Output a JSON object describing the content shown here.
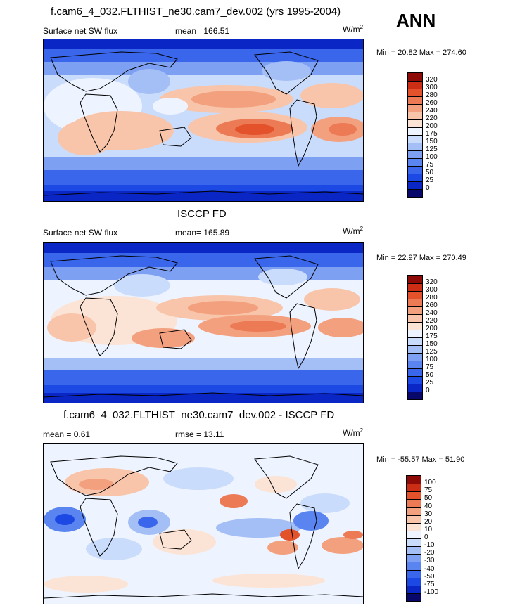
{
  "season": "ANN",
  "panels": [
    {
      "title": "f.cam6_4_032.FLTHIST_ne30.cam7_dev.002 (yrs 1995-2004)",
      "left_label": "Surface net SW flux",
      "center_label": "mean= 166.51",
      "units": "W/m",
      "units_sup": "2",
      "minmax": "Min =  20.82 Max = 274.60",
      "levels": [
        "0",
        "25",
        "50",
        "75",
        "100",
        "125",
        "150",
        "175",
        "200",
        "220",
        "240",
        "260",
        "280",
        "300",
        "320"
      ],
      "colors": [
        "#08086a",
        "#0a26c4",
        "#1c48e4",
        "#3a66ec",
        "#5a84f0",
        "#7ea0f2",
        "#a4bef6",
        "#cadcfb",
        "#eef4ff",
        "#fbe3d6",
        "#f8c5aa",
        "#f3a07f",
        "#ec7a55",
        "#e4522b",
        "#cb2e14",
        "#8e0a06"
      ]
    },
    {
      "title": "ISCCP FD",
      "left_label": "Surface net SW flux",
      "center_label": "mean= 165.89",
      "units": "W/m",
      "units_sup": "2",
      "minmax": "Min =  22.97 Max = 270.49",
      "levels": [
        "0",
        "25",
        "50",
        "75",
        "100",
        "125",
        "150",
        "175",
        "200",
        "220",
        "240",
        "260",
        "280",
        "300",
        "320"
      ],
      "colors": [
        "#08086a",
        "#0a26c4",
        "#1c48e4",
        "#3a66ec",
        "#5a84f0",
        "#7ea0f2",
        "#a4bef6",
        "#cadcfb",
        "#eef4ff",
        "#fbe3d6",
        "#f8c5aa",
        "#f3a07f",
        "#ec7a55",
        "#e4522b",
        "#cb2e14",
        "#8e0a06"
      ]
    },
    {
      "title": "f.cam6_4_032.FLTHIST_ne30.cam7_dev.002 - ISCCP FD",
      "left_label": "mean =   0.61",
      "center_label": "rmse =  13.11",
      "units": "W/m",
      "units_sup": "2",
      "minmax": "Min = -55.57 Max =  51.90",
      "levels": [
        "-100",
        "-75",
        "-50",
        "-40",
        "-30",
        "-20",
        "-10",
        "0",
        "10",
        "20",
        "30",
        "40",
        "50",
        "75",
        "100"
      ],
      "colors": [
        "#08086a",
        "#0a26c4",
        "#1c48e4",
        "#3a66ec",
        "#5a84f0",
        "#7ea0f2",
        "#a4bef6",
        "#cadcfb",
        "#eef4ff",
        "#fbe3d6",
        "#f8c5aa",
        "#f3a07f",
        "#ec7a55",
        "#e4522b",
        "#cb2e14",
        "#8e0a06"
      ]
    }
  ]
}
